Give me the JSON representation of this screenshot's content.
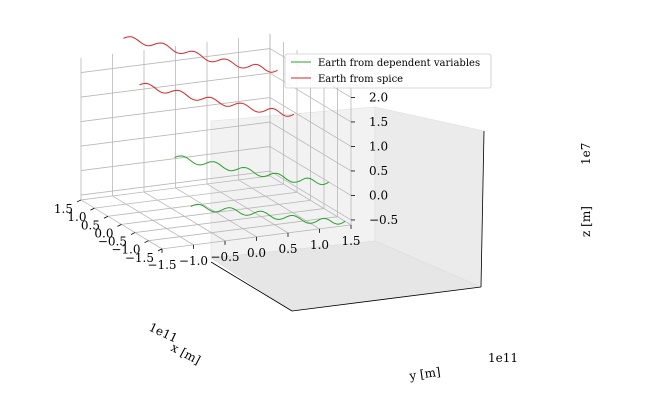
{
  "chart_data": {
    "type": "line",
    "projection": "3d",
    "legend": {
      "placement": "top-center",
      "entries": [
        {
          "label": "Earth from dependent variables",
          "color": "#2ca02c"
        },
        {
          "label": "Earth from spice",
          "color": "#d62728"
        }
      ]
    },
    "axes": {
      "x": {
        "label": "x [m]",
        "offset": "1e11",
        "ticks": [
          "−1.5",
          "−1.0",
          "−0.5",
          "0.0",
          "0.5",
          "1.0",
          "1.5"
        ],
        "lim": [
          -1.5,
          1.5
        ]
      },
      "y": {
        "label": "y [m]",
        "offset": "1e11",
        "ticks": [
          "−1.5",
          "−1.0",
          "−0.5",
          "0.0",
          "0.5",
          "1.0",
          "1.5"
        ],
        "lim": [
          -1.5,
          1.5
        ]
      },
      "z": {
        "label": "z [m]",
        "offset": "1e7",
        "ticks": [
          "−0.5",
          "0.0",
          "0.5",
          "1.0",
          "1.5",
          "2.0"
        ],
        "lim": [
          -0.6,
          2.3
        ]
      }
    },
    "grid": true,
    "series": [
      {
        "name": "Earth from dependent variables",
        "color": "#2ca02c",
        "points": [
          [
            -1.4,
            -1.0,
            0.15
          ],
          [
            -1.4,
            -0.5,
            0.0
          ],
          [
            -1.4,
            0.0,
            -0.15
          ],
          [
            -1.4,
            0.5,
            -0.32
          ],
          [
            -1.4,
            1.0,
            -0.48
          ],
          [
            -1.4,
            1.45,
            -0.55
          ],
          [
            -0.8,
            -1.0,
            0.95
          ],
          [
            -0.8,
            -0.5,
            0.75
          ],
          [
            -0.8,
            0.0,
            0.55
          ],
          [
            -0.8,
            0.5,
            0.35
          ],
          [
            -0.8,
            1.0,
            0.15
          ],
          [
            -0.8,
            1.45,
            0.05
          ]
        ]
      },
      {
        "name": "Earth from spice",
        "color": "#d62728",
        "points": [
          [
            0.5,
            -1.0,
            2.0
          ],
          [
            0.5,
            -0.5,
            1.78
          ],
          [
            0.5,
            0.0,
            1.55
          ],
          [
            0.5,
            0.5,
            1.35
          ],
          [
            0.5,
            1.0,
            1.15
          ],
          [
            0.5,
            1.45,
            1.0
          ],
          [
            1.1,
            -1.0,
            2.75
          ],
          [
            1.1,
            -0.5,
            2.55
          ],
          [
            1.1,
            0.0,
            2.3
          ],
          [
            1.1,
            0.5,
            2.05
          ],
          [
            1.1,
            1.0,
            1.85
          ],
          [
            1.1,
            1.45,
            1.7
          ]
        ]
      }
    ]
  }
}
